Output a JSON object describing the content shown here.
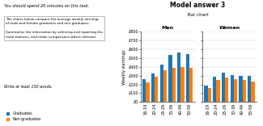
{
  "title": "Model answer 3",
  "subtitle": "Bar chart",
  "annotations": [
    "You should spend 20 minutes on this task.",
    "The charts below compare the average weekly earnings\nof male and female graduates and non-graduates.\n\nSummarise the information by selecting and reporting the\nmain features, and make comparisons where relevant.",
    "Write at least 150 words."
  ],
  "chart_data": [
    {
      "type": "bar",
      "title": "Men",
      "y_label": "Weekly earnings",
      "categories": [
        "16-19",
        "20-24",
        "25-29",
        "30-39",
        "40-49",
        "50-59"
      ],
      "series": [
        {
          "name": "Graduates",
          "values": [
            260,
            320,
            420,
            530,
            560,
            540
          ]
        },
        {
          "name": "Non-graduates",
          "values": [
            220,
            290,
            360,
            390,
            400,
            390
          ]
        }
      ],
      "ylim": [
        0,
        800
      ],
      "yticks": [
        {
          "value": 0,
          "label": "£0"
        },
        {
          "value": 100,
          "label": "£100"
        },
        {
          "value": 200,
          "label": "£200"
        },
        {
          "value": 300,
          "label": "£300"
        },
        {
          "value": 400,
          "label": "£400"
        },
        {
          "value": 500,
          "label": "£500"
        },
        {
          "value": 600,
          "label": "£600"
        },
        {
          "value": 700,
          "label": "£700"
        },
        {
          "value": 800,
          "label": "£800"
        }
      ],
      "grid": true,
      "legend": "lower left"
    },
    {
      "type": "bar",
      "title": "Women",
      "categories": [
        "16-19",
        "20-24",
        "25-29",
        "30-39",
        "40-49",
        "50-59"
      ],
      "series": [
        {
          "name": "Graduates",
          "values": [
            190,
            290,
            330,
            310,
            300,
            295
          ]
        },
        {
          "name": "Non-graduates",
          "values": [
            160,
            250,
            280,
            260,
            250,
            230
          ]
        }
      ],
      "ylim": [
        0,
        800
      ],
      "yticks": [
        0,
        100,
        200,
        300,
        400,
        500,
        600,
        700,
        800
      ],
      "grid": true,
      "tick_labels": "x"
    }
  ]
}
